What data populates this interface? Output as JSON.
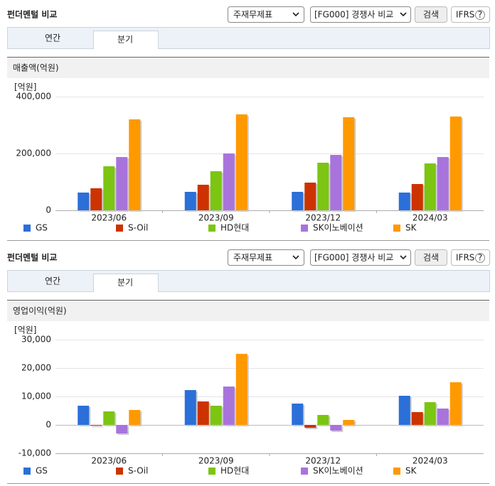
{
  "panels": [
    {
      "title": "펀더멘털 비교",
      "statement_select": "주재무제표",
      "compare_select": "[FG000] 경쟁사 비교",
      "search_button": "검색",
      "ifrs_button": "IFRS",
      "help_icon": "?",
      "tabs": [
        "연간",
        "분기"
      ]
    },
    {
      "title": "펀더멘털 비교",
      "statement_select": "주재무제표",
      "compare_select": "[FG000] 경쟁사 비교",
      "search_button": "검색",
      "ifrs_button": "IFRS",
      "help_icon": "?",
      "tabs": [
        "연간",
        "분기"
      ]
    }
  ],
  "chart_data": [
    {
      "type": "bar",
      "title": "매출액(억원)",
      "y_label": "[억원]",
      "categories": [
        "2023/06",
        "2023/09",
        "2023/12",
        "2024/03"
      ],
      "series": [
        {
          "name": "GS",
          "color": "#2b6fd8",
          "values": [
            62500,
            65000,
            65000,
            62500
          ]
        },
        {
          "name": "S-Oil",
          "color": "#cc3300",
          "values": [
            77500,
            90000,
            97500,
            92500
          ]
        },
        {
          "name": "HD현대",
          "color": "#7cc512",
          "values": [
            155000,
            137500,
            167500,
            165000
          ]
        },
        {
          "name": "SK이노베이션",
          "color": "#a874dc",
          "values": [
            187500,
            200000,
            195000,
            187500
          ]
        },
        {
          "name": "SK",
          "color": "#ff9900",
          "values": [
            320000,
            337500,
            327500,
            330000
          ]
        }
      ],
      "ylim": [
        0,
        400000
      ],
      "yticks": [
        0,
        {
          "value": 200000,
          "label": "200,000"
        },
        {
          "value": 400000,
          "label": "400,000"
        }
      ],
      "grid": true,
      "legend": "bottom"
    },
    {
      "type": "bar",
      "title": "영업이익(억원)",
      "y_label": "[억원]",
      "categories": [
        "2023/06",
        "2023/09",
        "2023/12",
        "2024/03"
      ],
      "series": [
        {
          "name": "GS",
          "color": "#2b6fd8",
          "values": [
            6750,
            12250,
            7500,
            10250
          ]
        },
        {
          "name": "S-Oil",
          "color": "#cc3300",
          "values": [
            -300,
            8250,
            -1000,
            4500
          ]
        },
        {
          "name": "HD현대",
          "color": "#7cc512",
          "values": [
            4750,
            6750,
            3500,
            8000
          ]
        },
        {
          "name": "SK이노베이션",
          "color": "#a874dc",
          "values": [
            -3000,
            13500,
            -2000,
            5750
          ]
        },
        {
          "name": "SK",
          "color": "#ff9900",
          "values": [
            5250,
            25000,
            1750,
            15000
          ]
        }
      ],
      "ylim": [
        -10000,
        30000
      ],
      "yticks": [
        {
          "value": -10000,
          "label": "-10,000"
        },
        0,
        {
          "value": 10000,
          "label": "10,000"
        },
        {
          "value": 20000,
          "label": "20,000"
        },
        {
          "value": 30000,
          "label": "30,000"
        }
      ],
      "grid": true,
      "legend": "bottom"
    }
  ]
}
